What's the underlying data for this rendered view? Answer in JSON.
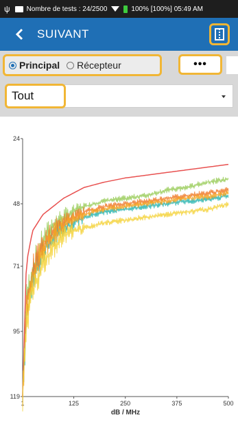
{
  "statusbar": {
    "tests_text": "Nombre de tests : 24/2500",
    "battery_text": "100% [100%] 05:49 AM",
    "usb_icon": "usb-icon",
    "wifi_icon": "wifi-icon"
  },
  "appbar": {
    "title": "SUIVANT",
    "back_icon": "chevron-left-icon",
    "layout_icon": "split-view-icon",
    "color": "#1f6fb5"
  },
  "tabs": {
    "principal": "Principal",
    "recepteur": "Récepteur",
    "selected": "Principal"
  },
  "more_button": {
    "label": "•••"
  },
  "filter": {
    "selected": "Tout"
  },
  "highlight_color": "#f1b635",
  "chart_data": {
    "type": "line",
    "xlabel": "dB / MHz",
    "ylabel": "",
    "x_ticks": [
      "1",
      "125",
      "250",
      "375",
      "500"
    ],
    "y_ticks": [
      "24",
      "48",
      "71",
      "95",
      "119"
    ],
    "xlim": [
      1,
      500
    ],
    "ylim": [
      24,
      119
    ],
    "y_inverted": true,
    "grid": false,
    "x": [
      1,
      10,
      25,
      50,
      75,
      100,
      125,
      150,
      200,
      250,
      300,
      350,
      400,
      450,
      500
    ],
    "series": [
      {
        "color": "#e8504f",
        "values": [
          119,
          70,
          58,
          52,
          49,
          46,
          44,
          42,
          40,
          38.5,
          37.5,
          36.5,
          35.5,
          34.5,
          33.5
        ]
      },
      {
        "color": "#9acd5a",
        "values": [
          119,
          84,
          72,
          62,
          56,
          53,
          51,
          49,
          47,
          46,
          45,
          43,
          42,
          40,
          39
        ]
      },
      {
        "color": "#2ab5b0",
        "values": [
          119,
          90,
          76,
          66,
          60,
          57,
          55,
          53,
          51,
          50,
          49,
          48,
          47,
          46.5,
          45
        ]
      },
      {
        "color": "#f07a2a",
        "values": [
          119,
          86,
          73,
          64,
          58,
          55,
          53,
          51,
          49,
          48,
          47,
          46,
          45,
          44,
          43
        ]
      },
      {
        "color": "#f5a623",
        "values": [
          119,
          88,
          75,
          65,
          60,
          56,
          54,
          52,
          50,
          49,
          48,
          47,
          46,
          45.5,
          44
        ]
      },
      {
        "color": "#f5d23a",
        "values": [
          119,
          92,
          80,
          70,
          64,
          60,
          58,
          57,
          55,
          54,
          53,
          52,
          51,
          50,
          48
        ]
      }
    ]
  }
}
